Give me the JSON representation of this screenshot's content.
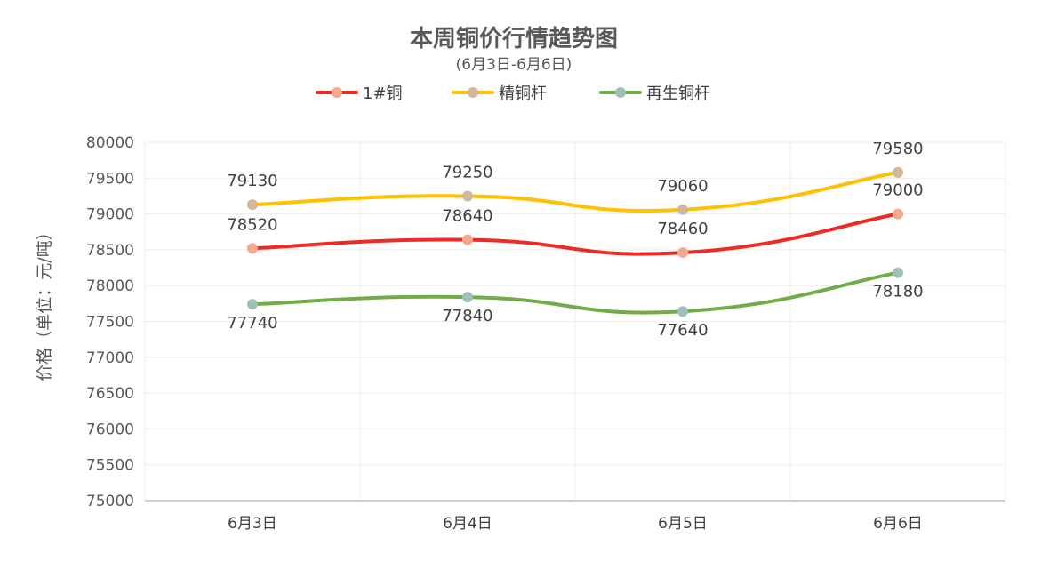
{
  "chart_data": {
    "type": "line",
    "title": "本周铜价行情趋势图",
    "subtitle": "(6月3日-6月6日)",
    "ylabel": "价格（单位：元/吨）",
    "xlabel": "",
    "categories": [
      "6月3日",
      "6月4日",
      "6月5日",
      "6月6日"
    ],
    "ylim": [
      75000,
      80000
    ],
    "ytick_step": 500,
    "grid": true,
    "legend_position": "top-center",
    "series": [
      {
        "name": "1#铜",
        "values": [
          78520,
          78640,
          78460,
          79000
        ],
        "color": "#ee2a24",
        "marker_color": "#f4a98c",
        "label_position": "above"
      },
      {
        "name": "精铜杆",
        "values": [
          79130,
          79250,
          79060,
          79580
        ],
        "color": "#ffc000",
        "marker_color": "#d2b79a",
        "label_position": "above"
      },
      {
        "name": "再生铜杆",
        "values": [
          77740,
          77840,
          77640,
          78180
        ],
        "color": "#70ad47",
        "marker_color": "#9fc0b9",
        "label_position": "below"
      }
    ]
  }
}
